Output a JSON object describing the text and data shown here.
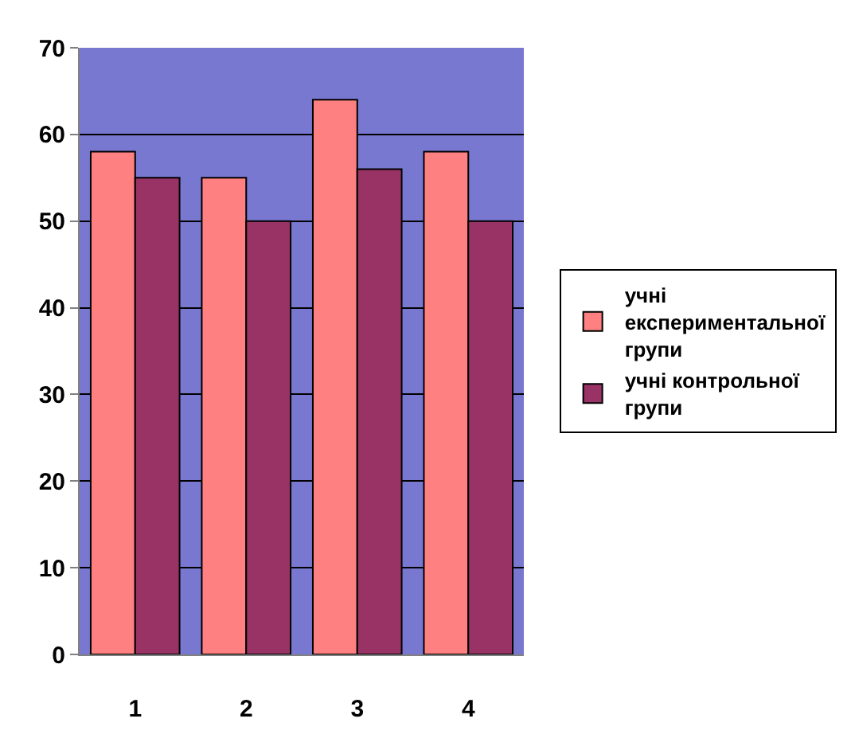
{
  "chart_data": {
    "type": "bar",
    "categories": [
      "1",
      "2",
      "3",
      "4"
    ],
    "series": [
      {
        "name": "учні експериментальної групи",
        "color": "#ff8080",
        "values": [
          58,
          55,
          64,
          58
        ]
      },
      {
        "name": "учні контрольної групи",
        "color": "#993366",
        "values": [
          55,
          50,
          56,
          50
        ]
      }
    ],
    "ylim": [
      0,
      70
    ],
    "yticks": [
      0,
      10,
      20,
      30,
      40,
      50,
      60,
      70
    ],
    "grid": "y",
    "legend": "right"
  }
}
